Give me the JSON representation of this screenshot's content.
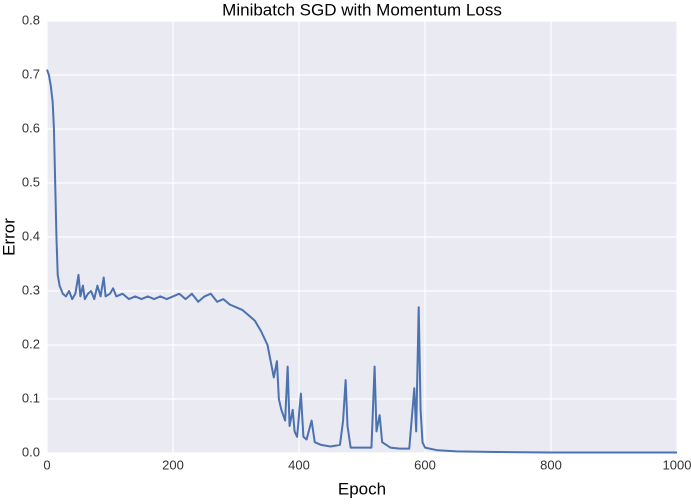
{
  "chart_data": {
    "type": "line",
    "title": "Minibatch SGD with Momentum Loss",
    "x_label": "Epoch",
    "y_label": "Error",
    "x": [
      0,
      3,
      6,
      9,
      11,
      13,
      15,
      17,
      20,
      25,
      30,
      35,
      40,
      45,
      50,
      53,
      57,
      60,
      65,
      70,
      75,
      80,
      85,
      90,
      93,
      100,
      105,
      110,
      120,
      130,
      140,
      150,
      160,
      170,
      180,
      190,
      200,
      210,
      220,
      230,
      240,
      250,
      260,
      270,
      280,
      290,
      300,
      310,
      320,
      330,
      340,
      350,
      355,
      360,
      365,
      368,
      372,
      378,
      382,
      385,
      390,
      393,
      397,
      403,
      407,
      412,
      420,
      425,
      435,
      450,
      465,
      470,
      474,
      477,
      482,
      500,
      515,
      520,
      523,
      528,
      532,
      545,
      560,
      575,
      583,
      586,
      590,
      593,
      596,
      600,
      620,
      650,
      700,
      800,
      900,
      1000
    ],
    "series": [
      {
        "name": "loss",
        "color": "#4c72b0",
        "values": [
          0.71,
          0.7,
          0.68,
          0.65,
          0.6,
          0.5,
          0.4,
          0.33,
          0.31,
          0.295,
          0.29,
          0.3,
          0.285,
          0.295,
          0.33,
          0.29,
          0.31,
          0.285,
          0.295,
          0.3,
          0.285,
          0.31,
          0.29,
          0.325,
          0.29,
          0.295,
          0.305,
          0.29,
          0.295,
          0.285,
          0.29,
          0.285,
          0.29,
          0.285,
          0.29,
          0.285,
          0.29,
          0.295,
          0.285,
          0.295,
          0.28,
          0.29,
          0.295,
          0.28,
          0.285,
          0.275,
          0.27,
          0.265,
          0.255,
          0.245,
          0.225,
          0.2,
          0.17,
          0.14,
          0.17,
          0.1,
          0.08,
          0.06,
          0.16,
          0.05,
          0.08,
          0.04,
          0.03,
          0.11,
          0.03,
          0.025,
          0.06,
          0.02,
          0.015,
          0.012,
          0.015,
          0.06,
          0.135,
          0.05,
          0.01,
          0.01,
          0.01,
          0.16,
          0.04,
          0.07,
          0.02,
          0.01,
          0.008,
          0.008,
          0.12,
          0.04,
          0.27,
          0.08,
          0.02,
          0.01,
          0.005,
          0.003,
          0.002,
          0.001,
          0.001,
          0.001
        ]
      }
    ],
    "xlim": [
      0,
      1000
    ],
    "xticks": [
      0,
      200,
      400,
      600,
      800,
      1000
    ],
    "ylim": [
      0,
      0.8
    ],
    "yticks": [
      {
        "value": 0,
        "label": "0.0"
      },
      0.1,
      0.2,
      0.3,
      0.4,
      0.5,
      0.6,
      0.7,
      0.8
    ],
    "grid": true
  }
}
